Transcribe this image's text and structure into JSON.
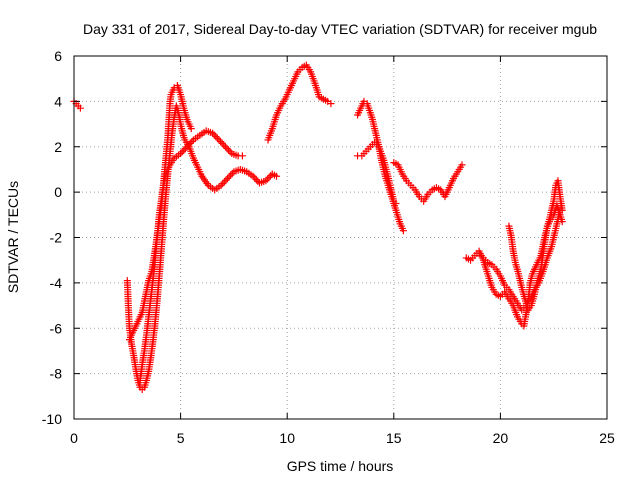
{
  "chart_data": {
    "type": "scatter",
    "title": "Day 331 of 2017, Sidereal Day-to-day VTEC variation (SDTVAR) for receiver mgub",
    "xlabel": "GPS time / hours",
    "ylabel": "SDTVAR / TECUs",
    "xlim": [
      0,
      25
    ],
    "ylim": [
      -10,
      6
    ],
    "x_ticks": [
      0,
      5,
      10,
      15,
      20,
      25
    ],
    "y_ticks": [
      -10,
      -8,
      -6,
      -4,
      -2,
      0,
      2,
      4,
      6
    ],
    "grid": true,
    "marker": "plus",
    "color": "#ff0000",
    "series": [
      {
        "points": [
          [
            0.0,
            4.0
          ],
          [
            0.1,
            3.9
          ],
          [
            0.2,
            3.8
          ],
          [
            0.3,
            3.7
          ]
        ]
      },
      {
        "points": [
          [
            2.5,
            -3.9
          ],
          [
            2.55,
            -5.0
          ],
          [
            2.6,
            -6.0
          ],
          [
            2.7,
            -6.7
          ],
          [
            2.8,
            -7.2
          ],
          [
            2.9,
            -7.8
          ],
          [
            3.0,
            -8.3
          ],
          [
            3.1,
            -8.6
          ],
          [
            3.2,
            -8.7
          ],
          [
            3.3,
            -8.6
          ],
          [
            3.4,
            -8.3
          ],
          [
            3.5,
            -7.9
          ],
          [
            3.6,
            -7.3
          ],
          [
            3.7,
            -6.6
          ],
          [
            3.8,
            -5.8
          ],
          [
            3.9,
            -4.8
          ],
          [
            4.0,
            -3.7
          ],
          [
            4.1,
            -2.5
          ],
          [
            4.2,
            -1.3
          ],
          [
            4.3,
            -0.2
          ],
          [
            4.4,
            0.8
          ],
          [
            4.5,
            1.7
          ],
          [
            4.6,
            2.6
          ],
          [
            4.7,
            3.3
          ],
          [
            4.8,
            3.8
          ],
          [
            4.9,
            3.5
          ],
          [
            5.0,
            3.0
          ],
          [
            5.1,
            2.6
          ],
          [
            5.2,
            2.3
          ],
          [
            5.4,
            2.0
          ],
          [
            5.6,
            1.5
          ],
          [
            5.8,
            1.1
          ],
          [
            6.0,
            0.7
          ],
          [
            6.3,
            0.3
          ],
          [
            6.6,
            0.1
          ],
          [
            6.9,
            0.3
          ],
          [
            7.2,
            0.6
          ],
          [
            7.5,
            0.9
          ],
          [
            7.8,
            1.0
          ],
          [
            8.1,
            0.9
          ],
          [
            8.4,
            0.7
          ],
          [
            8.7,
            0.4
          ],
          [
            9.0,
            0.5
          ],
          [
            9.3,
            0.8
          ],
          [
            9.5,
            0.7
          ]
        ]
      },
      {
        "points": [
          [
            2.6,
            -6.5
          ],
          [
            2.75,
            -6.2
          ],
          [
            2.9,
            -5.9
          ],
          [
            3.05,
            -5.6
          ],
          [
            3.2,
            -5.3
          ],
          [
            3.35,
            -4.6
          ],
          [
            3.5,
            -3.9
          ],
          [
            3.65,
            -3.5
          ],
          [
            3.8,
            -2.6
          ],
          [
            3.95,
            -1.6
          ],
          [
            4.1,
            -0.6
          ],
          [
            4.25,
            0.9
          ],
          [
            4.4,
            2.4
          ],
          [
            4.5,
            3.9
          ],
          [
            4.55,
            4.3
          ],
          [
            4.7,
            4.6
          ],
          [
            4.85,
            4.7
          ],
          [
            5.0,
            4.3
          ],
          [
            5.15,
            3.7
          ],
          [
            5.3,
            3.2
          ],
          [
            5.5,
            2.8
          ]
        ]
      },
      {
        "points": [
          [
            3.1,
            -8.3
          ],
          [
            3.2,
            -7.6
          ],
          [
            3.3,
            -7.0
          ],
          [
            3.4,
            -6.3
          ],
          [
            3.5,
            -5.5
          ],
          [
            3.6,
            -4.7
          ],
          [
            3.7,
            -3.9
          ],
          [
            3.8,
            -3.0
          ],
          [
            3.9,
            -2.0
          ],
          [
            4.0,
            -1.0
          ],
          [
            4.15,
            0.0
          ],
          [
            4.3,
            0.8
          ],
          [
            4.5,
            1.2
          ],
          [
            4.7,
            1.5
          ],
          [
            5.0,
            1.7
          ],
          [
            5.3,
            2.0
          ],
          [
            5.6,
            2.3
          ],
          [
            5.9,
            2.5
          ],
          [
            6.2,
            2.7
          ],
          [
            6.5,
            2.6
          ],
          [
            6.8,
            2.3
          ],
          [
            7.1,
            2.0
          ],
          [
            7.4,
            1.7
          ],
          [
            7.7,
            1.6
          ],
          [
            7.9,
            1.6
          ]
        ]
      },
      {
        "points": [
          [
            9.1,
            2.3
          ],
          [
            9.3,
            2.8
          ],
          [
            9.5,
            3.4
          ],
          [
            9.7,
            3.8
          ],
          [
            9.9,
            4.1
          ],
          [
            10.1,
            4.5
          ],
          [
            10.3,
            4.9
          ],
          [
            10.5,
            5.3
          ],
          [
            10.7,
            5.5
          ],
          [
            10.9,
            5.6
          ],
          [
            11.1,
            5.3
          ],
          [
            11.3,
            4.8
          ],
          [
            11.5,
            4.2
          ],
          [
            11.7,
            4.1
          ],
          [
            11.9,
            4.0
          ],
          [
            12.05,
            3.9
          ]
        ]
      },
      {
        "points": [
          [
            13.3,
            3.4
          ],
          [
            13.45,
            3.7
          ],
          [
            13.6,
            4.0
          ],
          [
            13.75,
            3.9
          ],
          [
            13.9,
            3.5
          ],
          [
            14.0,
            3.2
          ],
          [
            14.1,
            2.8
          ],
          [
            14.2,
            2.4
          ],
          [
            14.3,
            2.0
          ],
          [
            14.4,
            1.5
          ],
          [
            14.5,
            1.1
          ],
          [
            14.6,
            0.7
          ],
          [
            14.7,
            0.4
          ],
          [
            14.8,
            0.1
          ],
          [
            14.9,
            -0.2
          ],
          [
            15.0,
            -0.5
          ],
          [
            15.1,
            -0.8
          ],
          [
            15.2,
            -1.1
          ],
          [
            15.3,
            -1.4
          ],
          [
            15.45,
            -1.7
          ]
        ]
      },
      {
        "points": [
          [
            13.3,
            1.6
          ],
          [
            13.5,
            1.6
          ],
          [
            13.7,
            1.8
          ],
          [
            13.9,
            2.0
          ],
          [
            14.1,
            2.2
          ],
          [
            14.3,
            2.0
          ],
          [
            14.5,
            1.5
          ],
          [
            14.7,
            0.8
          ],
          [
            14.9,
            0.0
          ],
          [
            15.0,
            -0.4
          ],
          [
            15.1,
            -0.5
          ]
        ]
      },
      {
        "points": [
          [
            15.0,
            1.3
          ],
          [
            15.2,
            1.2
          ],
          [
            15.4,
            0.8
          ],
          [
            15.6,
            0.5
          ],
          [
            15.8,
            0.3
          ],
          [
            16.0,
            0.1
          ],
          [
            16.2,
            -0.2
          ],
          [
            16.4,
            -0.4
          ],
          [
            16.6,
            -0.1
          ],
          [
            16.8,
            0.1
          ],
          [
            17.0,
            0.2
          ],
          [
            17.2,
            0.1
          ],
          [
            17.4,
            -0.2
          ],
          [
            17.6,
            0.2
          ],
          [
            17.8,
            0.6
          ],
          [
            18.0,
            0.9
          ],
          [
            18.2,
            1.2
          ]
        ]
      },
      {
        "points": [
          [
            18.4,
            -2.9
          ],
          [
            18.6,
            -3.0
          ],
          [
            18.8,
            -2.8
          ],
          [
            19.0,
            -2.6
          ],
          [
            19.2,
            -3.0
          ],
          [
            19.4,
            -3.6
          ],
          [
            19.6,
            -4.2
          ],
          [
            19.8,
            -4.5
          ],
          [
            20.0,
            -4.6
          ],
          [
            20.2,
            -4.4
          ],
          [
            20.4,
            -4.7
          ],
          [
            20.6,
            -5.0
          ],
          [
            20.8,
            -5.5
          ],
          [
            21.0,
            -5.8
          ],
          [
            21.1,
            -5.9
          ],
          [
            21.2,
            -5.4
          ],
          [
            21.3,
            -4.8
          ],
          [
            21.4,
            -4.0
          ],
          [
            21.5,
            -3.6
          ],
          [
            21.7,
            -3.2
          ],
          [
            21.9,
            -2.8
          ],
          [
            22.1,
            -1.9
          ],
          [
            22.3,
            -1.2
          ],
          [
            22.5,
            -0.4
          ],
          [
            22.6,
            0.3
          ],
          [
            22.7,
            0.5
          ],
          [
            22.8,
            -0.2
          ],
          [
            22.9,
            -0.8
          ]
        ]
      },
      {
        "points": [
          [
            19.0,
            -2.7
          ],
          [
            19.2,
            -2.9
          ],
          [
            19.4,
            -3.1
          ],
          [
            19.6,
            -3.2
          ],
          [
            19.8,
            -3.4
          ],
          [
            20.0,
            -3.7
          ],
          [
            20.2,
            -4.1
          ],
          [
            20.4,
            -4.3
          ],
          [
            20.6,
            -4.6
          ],
          [
            20.8,
            -4.9
          ],
          [
            21.0,
            -5.2
          ],
          [
            21.2,
            -5.0
          ],
          [
            21.4,
            -4.7
          ],
          [
            21.6,
            -4.3
          ],
          [
            21.8,
            -4.0
          ],
          [
            22.0,
            -3.5
          ],
          [
            22.2,
            -2.9
          ],
          [
            22.4,
            -2.4
          ],
          [
            22.6,
            -1.6
          ],
          [
            22.8,
            -0.8
          ]
        ]
      },
      {
        "points": [
          [
            20.4,
            -1.5
          ],
          [
            20.5,
            -1.9
          ],
          [
            20.6,
            -2.6
          ],
          [
            20.7,
            -3.1
          ],
          [
            20.85,
            -3.6
          ],
          [
            21.0,
            -4.2
          ],
          [
            21.15,
            -4.7
          ],
          [
            21.3,
            -5.2
          ],
          [
            21.45,
            -5.0
          ],
          [
            21.6,
            -4.5
          ],
          [
            21.75,
            -3.9
          ],
          [
            21.9,
            -3.4
          ],
          [
            22.05,
            -2.4
          ],
          [
            22.2,
            -1.5
          ],
          [
            22.35,
            -1.2
          ],
          [
            22.5,
            -1.0
          ],
          [
            22.65,
            -0.6
          ],
          [
            22.8,
            -1.0
          ],
          [
            22.9,
            -1.3
          ]
        ]
      }
    ]
  }
}
